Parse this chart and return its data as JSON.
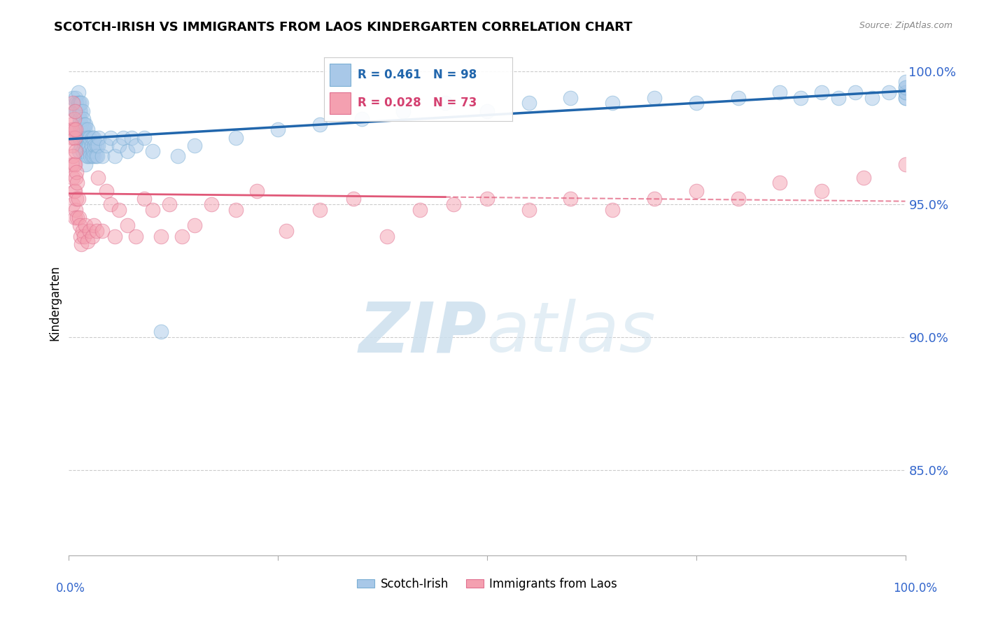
{
  "title": "SCOTCH-IRISH VS IMMIGRANTS FROM LAOS KINDERGARTEN CORRELATION CHART",
  "source": "Source: ZipAtlas.com",
  "ylabel": "Kindergarten",
  "legend_blue_label": "Scotch-Irish",
  "legend_pink_label": "Immigrants from Laos",
  "blue_R": 0.461,
  "blue_N": 98,
  "pink_R": 0.028,
  "pink_N": 73,
  "ytick_labels": [
    "100.0%",
    "95.0%",
    "90.0%",
    "85.0%"
  ],
  "ytick_values": [
    1.0,
    0.95,
    0.9,
    0.85
  ],
  "xlim": [
    0.0,
    1.0
  ],
  "ylim": [
    0.818,
    1.008
  ],
  "blue_color": "#a8c8e8",
  "blue_edge_color": "#7bafd4",
  "blue_line_color": "#2166ac",
  "pink_color": "#f4a0b0",
  "pink_edge_color": "#e07090",
  "pink_line_color": "#d44070",
  "pink_line_solid_color": "#e05878",
  "watermark_color": "#cde0ee",
  "blue_scatter_x": [
    0.005,
    0.007,
    0.008,
    0.008,
    0.009,
    0.01,
    0.01,
    0.01,
    0.011,
    0.011,
    0.012,
    0.012,
    0.012,
    0.012,
    0.013,
    0.013,
    0.013,
    0.014,
    0.014,
    0.015,
    0.015,
    0.015,
    0.016,
    0.016,
    0.016,
    0.017,
    0.017,
    0.018,
    0.018,
    0.019,
    0.019,
    0.02,
    0.02,
    0.02,
    0.02,
    0.021,
    0.021,
    0.022,
    0.022,
    0.023,
    0.023,
    0.024,
    0.025,
    0.025,
    0.026,
    0.027,
    0.028,
    0.028,
    0.029,
    0.03,
    0.03,
    0.031,
    0.032,
    0.033,
    0.034,
    0.035,
    0.036,
    0.04,
    0.045,
    0.05,
    0.055,
    0.06,
    0.065,
    0.07,
    0.075,
    0.08,
    0.09,
    0.1,
    0.11,
    0.13,
    0.15,
    0.2,
    0.25,
    0.3,
    0.35,
    0.4,
    0.45,
    0.5,
    0.55,
    0.6,
    0.65,
    0.7,
    0.75,
    0.8,
    0.85,
    0.875,
    0.9,
    0.92,
    0.94,
    0.96,
    0.98,
    1.0,
    1.0,
    1.0,
    1.0,
    1.0,
    1.0,
    1.0
  ],
  "blue_scatter_y": [
    0.99,
    0.985,
    0.99,
    0.985,
    0.988,
    0.985,
    0.978,
    0.975,
    0.992,
    0.988,
    0.985,
    0.98,
    0.975,
    0.97,
    0.988,
    0.982,
    0.975,
    0.985,
    0.978,
    0.988,
    0.98,
    0.972,
    0.985,
    0.978,
    0.97,
    0.982,
    0.975,
    0.98,
    0.973,
    0.978,
    0.972,
    0.98,
    0.975,
    0.97,
    0.965,
    0.975,
    0.968,
    0.978,
    0.972,
    0.975,
    0.968,
    0.972,
    0.975,
    0.97,
    0.968,
    0.972,
    0.975,
    0.968,
    0.97,
    0.975,
    0.968,
    0.972,
    0.968,
    0.972,
    0.968,
    0.972,
    0.975,
    0.968,
    0.972,
    0.975,
    0.968,
    0.972,
    0.975,
    0.97,
    0.975,
    0.972,
    0.975,
    0.97,
    0.902,
    0.968,
    0.972,
    0.975,
    0.978,
    0.98,
    0.982,
    0.985,
    0.988,
    0.985,
    0.988,
    0.99,
    0.988,
    0.99,
    0.988,
    0.99,
    0.992,
    0.99,
    0.992,
    0.99,
    0.992,
    0.99,
    0.992,
    0.99,
    0.992,
    0.994,
    0.99,
    0.992,
    0.994,
    0.996
  ],
  "pink_scatter_x": [
    0.003,
    0.004,
    0.004,
    0.004,
    0.005,
    0.005,
    0.005,
    0.005,
    0.006,
    0.006,
    0.006,
    0.007,
    0.007,
    0.007,
    0.007,
    0.008,
    0.008,
    0.008,
    0.009,
    0.009,
    0.01,
    0.01,
    0.011,
    0.012,
    0.013,
    0.014,
    0.015,
    0.016,
    0.018,
    0.02,
    0.022,
    0.025,
    0.028,
    0.03,
    0.033,
    0.035,
    0.04,
    0.045,
    0.05,
    0.055,
    0.06,
    0.07,
    0.08,
    0.09,
    0.1,
    0.11,
    0.12,
    0.135,
    0.15,
    0.17,
    0.2,
    0.225,
    0.26,
    0.3,
    0.34,
    0.38,
    0.42,
    0.46,
    0.5,
    0.55,
    0.6,
    0.65,
    0.7,
    0.75,
    0.8,
    0.85,
    0.9,
    0.95,
    1.0,
    0.005,
    0.006,
    0.007,
    0.008
  ],
  "pink_scatter_y": [
    0.98,
    0.978,
    0.972,
    0.965,
    0.975,
    0.968,
    0.96,
    0.95,
    0.978,
    0.965,
    0.955,
    0.975,
    0.965,
    0.955,
    0.945,
    0.97,
    0.96,
    0.948,
    0.962,
    0.952,
    0.958,
    0.945,
    0.952,
    0.945,
    0.942,
    0.938,
    0.935,
    0.94,
    0.938,
    0.942,
    0.936,
    0.94,
    0.938,
    0.942,
    0.94,
    0.96,
    0.94,
    0.955,
    0.95,
    0.938,
    0.948,
    0.942,
    0.938,
    0.952,
    0.948,
    0.938,
    0.95,
    0.938,
    0.942,
    0.95,
    0.948,
    0.955,
    0.94,
    0.948,
    0.952,
    0.938,
    0.948,
    0.95,
    0.952,
    0.948,
    0.952,
    0.948,
    0.952,
    0.955,
    0.952,
    0.958,
    0.955,
    0.96,
    0.965,
    0.988,
    0.982,
    0.985,
    0.978
  ]
}
